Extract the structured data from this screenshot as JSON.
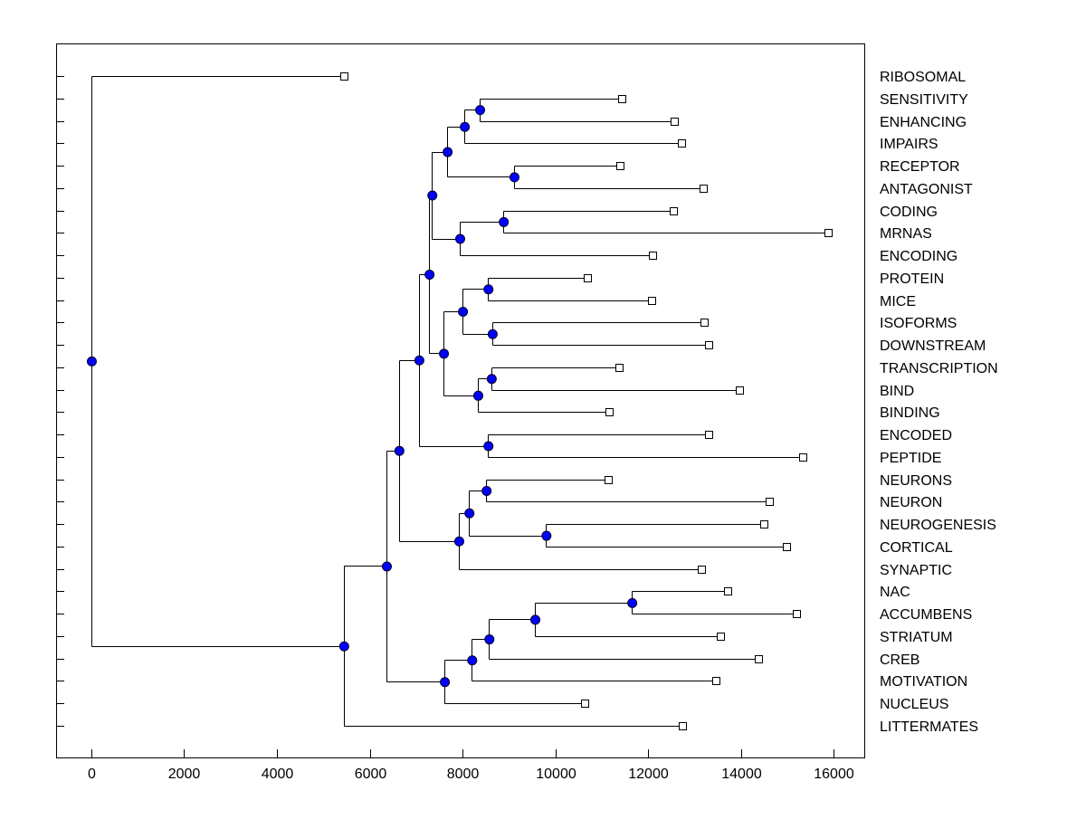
{
  "chart_data": {
    "type": "dendrogram",
    "title": "",
    "xlabel": "",
    "ylabel": "",
    "xlim": [
      -760,
      16660
    ],
    "x_ticks": [
      0,
      2000,
      4000,
      6000,
      8000,
      10000,
      12000,
      14000,
      16000
    ],
    "grid": false,
    "legend": "none",
    "colors": {
      "node": "#0000ff",
      "leaf": "#ffffff",
      "line": "#000000"
    },
    "tree": {
      "h": 0,
      "c": [
        {
          "label": "RIBOSOMAL",
          "h": 5440
        },
        {
          "h": 5440,
          "c": [
            {
              "h": 6360,
              "c": [
                {
                  "h": 6630,
                  "c": [
                    {
                      "h": 7060,
                      "c": [
                        {
                          "h": 7280,
                          "c": [
                            {
                              "h": 7340,
                              "c": [
                                {
                                  "h": 7670,
                                  "c": [
                                    {
                                      "h": 8040,
                                      "c": [
                                        {
                                          "h": 8370,
                                          "c": [
                                            {
                                              "label": "SENSITIVITY",
                                              "h": 11430
                                            },
                                            {
                                              "label": "ENHANCING",
                                              "h": 12570
                                            }
                                          ]
                                        },
                                        {
                                          "label": "IMPAIRS",
                                          "h": 12720
                                        }
                                      ]
                                    },
                                    {
                                      "h": 9110,
                                      "c": [
                                        {
                                          "label": "RECEPTOR",
                                          "h": 11400
                                        },
                                        {
                                          "label": "ANTAGONIST",
                                          "h": 13190
                                        }
                                      ]
                                    }
                                  ]
                                },
                                {
                                  "h": 7940,
                                  "c": [
                                    {
                                      "h": 8880,
                                      "c": [
                                        {
                                          "label": "CODING",
                                          "h": 12550
                                        },
                                        {
                                          "label": "MRNAS",
                                          "h": 15880
                                        }
                                      ]
                                    },
                                    {
                                      "label": "ENCODING",
                                      "h": 12100
                                    }
                                  ]
                                }
                              ]
                            },
                            {
                              "h": 7590,
                              "c": [
                                {
                                  "h": 8000,
                                  "c": [
                                    {
                                      "h": 8550,
                                      "c": [
                                        {
                                          "label": "PROTEIN",
                                          "h": 10690
                                        },
                                        {
                                          "label": "MICE",
                                          "h": 12080
                                        }
                                      ]
                                    },
                                    {
                                      "h": 8640,
                                      "c": [
                                        {
                                          "label": "ISOFORMS",
                                          "h": 13210
                                        },
                                        {
                                          "label": "DOWNSTREAM",
                                          "h": 13310
                                        }
                                      ]
                                    }
                                  ]
                                },
                                {
                                  "h": 8330,
                                  "c": [
                                    {
                                      "h": 8620,
                                      "c": [
                                        {
                                          "label": "TRANSCRIPTION",
                                          "h": 11380
                                        },
                                        {
                                          "label": "BIND",
                                          "h": 13970
                                        }
                                      ]
                                    },
                                    {
                                      "label": "BINDING",
                                      "h": 11160
                                    }
                                  ]
                                }
                              ]
                            }
                          ]
                        },
                        {
                          "h": 8550,
                          "c": [
                            {
                              "label": "ENCODED",
                              "h": 13310
                            },
                            {
                              "label": "PEPTIDE",
                              "h": 15340
                            }
                          ]
                        }
                      ]
                    },
                    {
                      "h": 7920,
                      "c": [
                        {
                          "h": 8140,
                          "c": [
                            {
                              "h": 8510,
                              "c": [
                                {
                                  "label": "NEURONS",
                                  "h": 11140
                                },
                                {
                                  "label": "NEURON",
                                  "h": 14620
                                }
                              ]
                            },
                            {
                              "h": 9800,
                              "c": [
                                {
                                  "label": "NEUROGENESIS",
                                  "h": 14500
                                },
                                {
                                  "label": "CORTICAL",
                                  "h": 14990
                                }
                              ]
                            }
                          ]
                        },
                        {
                          "label": "SYNAPTIC",
                          "h": 13150
                        }
                      ]
                    }
                  ]
                },
                {
                  "h": 7610,
                  "c": [
                    {
                      "h": 8200,
                      "c": [
                        {
                          "h": 8570,
                          "c": [
                            {
                              "h": 9560,
                              "c": [
                                {
                                  "h": 11650,
                                  "c": [
                                    {
                                      "label": "NAC",
                                      "h": 13720
                                    },
                                    {
                                      "label": "ACCUMBENS",
                                      "h": 15200
                                    }
                                  ]
                                },
                                {
                                  "label": "STRIATUM",
                                  "h": 13560
                                }
                              ]
                            },
                            {
                              "label": "CREB",
                              "h": 14380
                            }
                          ]
                        },
                        {
                          "label": "MOTIVATION",
                          "h": 13460
                        }
                      ]
                    },
                    {
                      "label": "NUCLEUS",
                      "h": 10630
                    }
                  ]
                }
              ]
            },
            {
              "label": "LITTERMATES",
              "h": 12740
            }
          ]
        }
      ]
    }
  }
}
